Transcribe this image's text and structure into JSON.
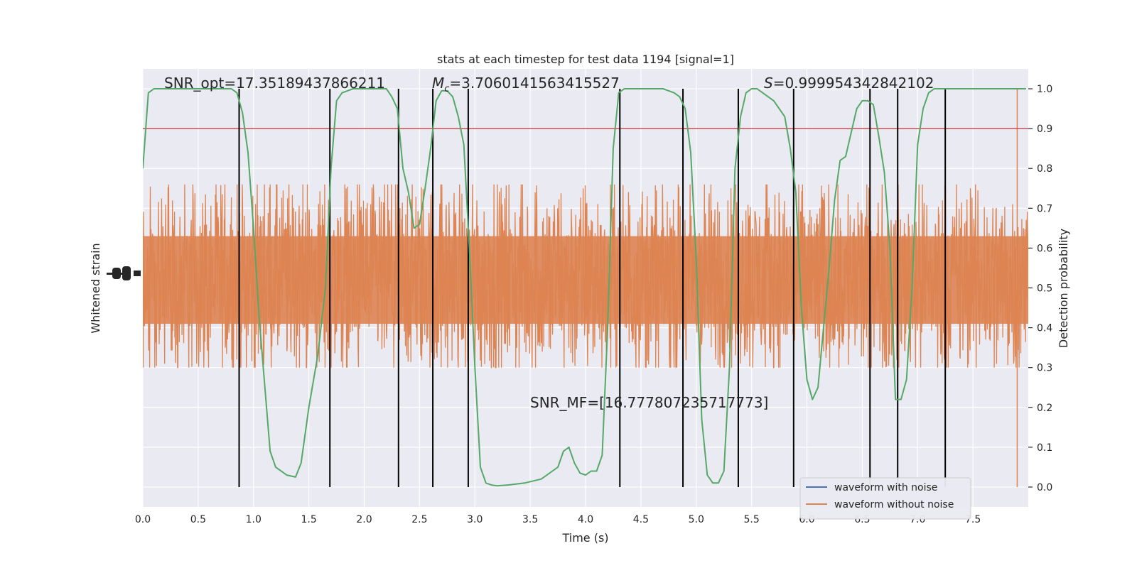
{
  "chart_data": {
    "type": "line",
    "title": "stats at each timestep for test data 1194 [signal=1]",
    "xlabel": "Time (s)",
    "ylabel_left": "Whitened strain",
    "ylabel_right": "Detection probability",
    "xlim": [
      0,
      8
    ],
    "ylim_right": [
      -0.05,
      1.05
    ],
    "x_ticks": [
      0.0,
      0.5,
      1.0,
      1.5,
      2.0,
      2.5,
      3.0,
      3.5,
      4.0,
      4.5,
      5.0,
      5.5,
      6.0,
      6.5,
      7.0,
      7.5
    ],
    "x_tick_labels": [
      "0.0",
      "0.5",
      "1.0",
      "1.5",
      "2.0",
      "2.5",
      "3.0",
      "3.5",
      "4.0",
      "4.5",
      "5.0",
      "5.5",
      "6.0",
      "6.5",
      "7.0",
      "7.5"
    ],
    "y_right_ticks": [
      0.0,
      0.1,
      0.2,
      0.3,
      0.4,
      0.5,
      0.6,
      0.7,
      0.8,
      0.9,
      1.0
    ],
    "y_right_tick_labels": [
      "0.0",
      "0.1",
      "0.2",
      "0.3",
      "0.4",
      "0.5",
      "0.6",
      "0.7",
      "0.8",
      "0.9",
      "1.0"
    ],
    "grid": true,
    "legend_position": "lower-right",
    "legend": [
      {
        "label": "waveform with noise",
        "color": "#4c72b0"
      },
      {
        "label": "waveform without noise",
        "color": "#dd8452"
      }
    ],
    "colors": {
      "background": "#eaeaf2",
      "noise": "#dd8452",
      "probability": "#55a868",
      "threshold": "#c44e52",
      "event_lines": "#000000"
    },
    "threshold": 0.9,
    "event_lines_x": [
      0.87,
      1.69,
      2.31,
      2.62,
      2.94,
      4.31,
      4.88,
      5.38,
      5.88,
      6.57,
      6.82,
      7.25
    ],
    "probability": {
      "x": [
        0.0,
        0.05,
        0.1,
        0.2,
        0.3,
        0.5,
        0.7,
        0.8,
        0.85,
        0.9,
        0.95,
        1.0,
        1.05,
        1.1,
        1.15,
        1.2,
        1.3,
        1.38,
        1.43,
        1.5,
        1.58,
        1.65,
        1.7,
        1.75,
        1.8,
        1.9,
        2.0,
        2.1,
        2.2,
        2.25,
        2.3,
        2.35,
        2.4,
        2.45,
        2.5,
        2.55,
        2.6,
        2.65,
        2.7,
        2.75,
        2.8,
        2.85,
        2.9,
        2.95,
        3.0,
        3.05,
        3.1,
        3.15,
        3.2,
        3.3,
        3.45,
        3.6,
        3.7,
        3.75,
        3.8,
        3.85,
        3.9,
        3.95,
        4.0,
        4.05,
        4.1,
        4.15,
        4.2,
        4.25,
        4.3,
        4.35,
        4.4,
        4.45,
        4.55,
        4.7,
        4.8,
        4.85,
        4.9,
        4.95,
        5.0,
        5.05,
        5.1,
        5.15,
        5.2,
        5.25,
        5.3,
        5.35,
        5.4,
        5.45,
        5.5,
        5.55,
        5.6,
        5.7,
        5.8,
        5.85,
        5.9,
        5.95,
        6.0,
        6.05,
        6.1,
        6.15,
        6.2,
        6.25,
        6.3,
        6.35,
        6.4,
        6.45,
        6.5,
        6.55,
        6.6,
        6.65,
        6.7,
        6.75,
        6.8,
        6.85,
        6.9,
        6.95,
        7.0,
        7.05,
        7.1,
        7.15,
        7.2,
        7.25,
        7.3,
        7.35,
        7.45,
        7.55,
        7.7,
        7.9,
        7.98
      ],
      "y": [
        0.8,
        0.99,
        1.0,
        1.0,
        1.0,
        1.0,
        1.0,
        1.0,
        0.99,
        0.94,
        0.84,
        0.65,
        0.43,
        0.26,
        0.09,
        0.05,
        0.03,
        0.025,
        0.06,
        0.2,
        0.33,
        0.5,
        0.8,
        0.97,
        0.99,
        1.0,
        1.0,
        1.0,
        1.0,
        0.98,
        0.95,
        0.8,
        0.74,
        0.65,
        0.66,
        0.75,
        0.85,
        0.97,
        0.995,
        0.995,
        0.98,
        0.93,
        0.86,
        0.6,
        0.3,
        0.05,
        0.01,
        0.005,
        0.003,
        0.005,
        0.01,
        0.02,
        0.04,
        0.05,
        0.09,
        0.1,
        0.06,
        0.035,
        0.03,
        0.04,
        0.04,
        0.08,
        0.4,
        0.85,
        0.99,
        1.0,
        1.0,
        1.0,
        1.0,
        1.0,
        0.99,
        0.98,
        0.95,
        0.84,
        0.57,
        0.17,
        0.03,
        0.01,
        0.01,
        0.04,
        0.3,
        0.8,
        0.93,
        0.99,
        1.0,
        1.0,
        0.99,
        0.97,
        0.93,
        0.85,
        0.74,
        0.45,
        0.27,
        0.22,
        0.25,
        0.4,
        0.55,
        0.72,
        0.82,
        0.83,
        0.89,
        0.95,
        0.97,
        0.97,
        0.96,
        0.88,
        0.79,
        0.6,
        0.22,
        0.22,
        0.27,
        0.5,
        0.86,
        0.95,
        0.99,
        1.0,
        1.0,
        1.0,
        1.0,
        1.0,
        1.0,
        1.0,
        1.0,
        1.0,
        1.0
      ],
      "note": ""
    },
    "annotations": {
      "snr_opt": "SNR_opt=17.35189437866211",
      "mc_symbol": "M",
      "mc_subscript": "c",
      "mc_value": "=3.7060141563415527",
      "s_symbol": "S",
      "s_value": "=0.999954342842102",
      "snr_mf": "SNR_MF=[16.777807235717773]"
    },
    "noise_band": {
      "center": 0.52,
      "core_half_width": 0.11,
      "typical_peak": 0.72,
      "typical_trough": 0.35,
      "max_peak": 1.0,
      "min_trough": 0.0
    }
  }
}
